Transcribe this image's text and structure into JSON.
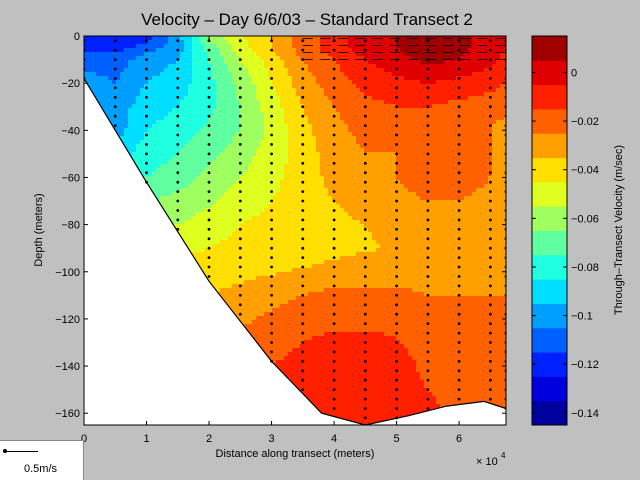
{
  "chart_data": {
    "type": "heatmap",
    "title": "Velocity – Day 6/6/03 – Standard Transect 2",
    "xlabel": "Distance along transect (meters)",
    "ylabel": "Depth (meters)",
    "x_multiplier": "× 10",
    "x_multiplier_exp": "4",
    "x_ticks": [
      "0",
      "1",
      "2",
      "3",
      "4",
      "5",
      "6"
    ],
    "y_ticks": [
      "0",
      "−20",
      "−40",
      "−60",
      "−80",
      "−100",
      "−120",
      "−140",
      "−160"
    ],
    "xlim": [
      0,
      67500
    ],
    "ylim": [
      -165,
      0
    ],
    "colorbar": {
      "label": "Through–Transect Velocity (m/sec)",
      "ticks": [
        "0",
        "−0.02",
        "−0.04",
        "−0.06",
        "−0.08",
        "−0.1",
        "−0.12",
        "−0.14"
      ],
      "range": [
        -0.145,
        0.015
      ]
    },
    "scale_label": "0.5m/s",
    "bottom_profile": [
      [
        0,
        -18
      ],
      [
        10000,
        -62
      ],
      [
        20000,
        -104
      ],
      [
        30000,
        -138
      ],
      [
        38000,
        -160
      ],
      [
        45000,
        -165
      ],
      [
        52000,
        -161
      ],
      [
        58000,
        -157
      ],
      [
        64000,
        -155
      ],
      [
        67500,
        -158
      ]
    ],
    "sample_x": [
      0,
      5000,
      10000,
      15000,
      20000,
      25000,
      30000,
      35000,
      40000,
      45000,
      50000,
      55000,
      60000,
      65000,
      67500
    ],
    "sample_y": [
      0,
      -5,
      -10,
      -20,
      -30,
      -40,
      -50,
      -60,
      -70,
      -80,
      -90,
      -100,
      -110,
      -120,
      -130,
      -140,
      -150,
      -160
    ],
    "values": [
      [
        -0.12,
        -0.125,
        -0.12,
        -0.1,
        -0.06,
        -0.045,
        -0.035,
        -0.02,
        -0.01,
        0.0,
        0.005,
        0.01,
        0.008,
        0.0,
        -0.005
      ],
      [
        -0.12,
        -0.12,
        -0.11,
        -0.1,
        -0.07,
        -0.05,
        -0.035,
        -0.02,
        -0.01,
        0.0,
        0.005,
        0.01,
        0.008,
        0.0,
        -0.005
      ],
      [
        -0.11,
        -0.11,
        -0.1,
        -0.095,
        -0.075,
        -0.055,
        -0.04,
        -0.025,
        -0.015,
        -0.005,
        0.002,
        0.008,
        0.005,
        -0.002,
        -0.008
      ],
      [
        -0.1,
        -0.105,
        -0.095,
        -0.09,
        -0.078,
        -0.062,
        -0.045,
        -0.03,
        -0.02,
        -0.012,
        -0.008,
        -0.005,
        -0.008,
        -0.012,
        -0.015
      ],
      [
        -0.1,
        -0.1,
        -0.09,
        -0.085,
        -0.077,
        -0.065,
        -0.05,
        -0.035,
        -0.025,
        -0.018,
        -0.015,
        -0.015,
        -0.018,
        -0.02,
        -0.022
      ],
      [
        -0.1,
        -0.1,
        -0.085,
        -0.08,
        -0.073,
        -0.065,
        -0.052,
        -0.038,
        -0.028,
        -0.022,
        -0.02,
        -0.02,
        -0.02,
        -0.025,
        -0.03
      ],
      [
        -0.09,
        -0.09,
        -0.08,
        -0.075,
        -0.068,
        -0.06,
        -0.05,
        -0.04,
        -0.03,
        -0.025,
        -0.025,
        -0.02,
        -0.02,
        -0.025,
        -0.03
      ],
      [
        -0.08,
        -0.08,
        -0.075,
        -0.07,
        -0.062,
        -0.055,
        -0.048,
        -0.04,
        -0.032,
        -0.028,
        -0.025,
        -0.02,
        -0.02,
        -0.025,
        -0.03
      ],
      [
        -0.07,
        -0.07,
        -0.065,
        -0.062,
        -0.057,
        -0.05,
        -0.045,
        -0.04,
        -0.035,
        -0.03,
        -0.028,
        -0.025,
        -0.025,
        -0.028,
        -0.03
      ],
      [
        -0.06,
        -0.06,
        -0.058,
        -0.055,
        -0.05,
        -0.045,
        -0.042,
        -0.04,
        -0.038,
        -0.035,
        -0.032,
        -0.03,
        -0.03,
        -0.03,
        -0.03
      ],
      [
        -0.05,
        -0.05,
        -0.05,
        -0.048,
        -0.045,
        -0.042,
        -0.04,
        -0.04,
        -0.038,
        -0.036,
        -0.034,
        -0.032,
        -0.03,
        -0.03,
        -0.03
      ],
      [
        -0.04,
        -0.04,
        -0.04,
        -0.04,
        -0.04,
        -0.038,
        -0.036,
        -0.034,
        -0.032,
        -0.03,
        -0.03,
        -0.03,
        -0.028,
        -0.027,
        -0.027
      ],
      [
        -0.035,
        -0.035,
        -0.035,
        -0.035,
        -0.035,
        -0.032,
        -0.028,
        -0.025,
        -0.022,
        -0.022,
        -0.022,
        -0.025,
        -0.025,
        -0.025,
        -0.025
      ],
      [
        -0.03,
        -0.03,
        -0.03,
        -0.03,
        -0.03,
        -0.027,
        -0.023,
        -0.02,
        -0.018,
        -0.018,
        -0.018,
        -0.022,
        -0.022,
        -0.022,
        -0.022
      ],
      [
        -0.025,
        -0.025,
        -0.025,
        -0.025,
        -0.025,
        -0.022,
        -0.018,
        -0.015,
        -0.012,
        -0.012,
        -0.014,
        -0.02,
        -0.02,
        -0.02,
        -0.02
      ],
      [
        -0.02,
        -0.02,
        -0.02,
        -0.02,
        -0.02,
        -0.018,
        -0.015,
        -0.012,
        -0.01,
        -0.008,
        -0.01,
        -0.018,
        -0.02,
        -0.02,
        -0.02
      ],
      [
        -0.015,
        -0.015,
        -0.015,
        -0.015,
        -0.015,
        -0.015,
        -0.013,
        -0.01,
        -0.008,
        -0.006,
        -0.008,
        -0.015,
        -0.02,
        -0.02,
        -0.02
      ],
      [
        -0.01,
        -0.01,
        -0.01,
        -0.01,
        -0.01,
        -0.01,
        -0.01,
        -0.008,
        -0.006,
        -0.005,
        -0.006,
        -0.012,
        -0.018,
        -0.018,
        -0.018
      ]
    ]
  }
}
